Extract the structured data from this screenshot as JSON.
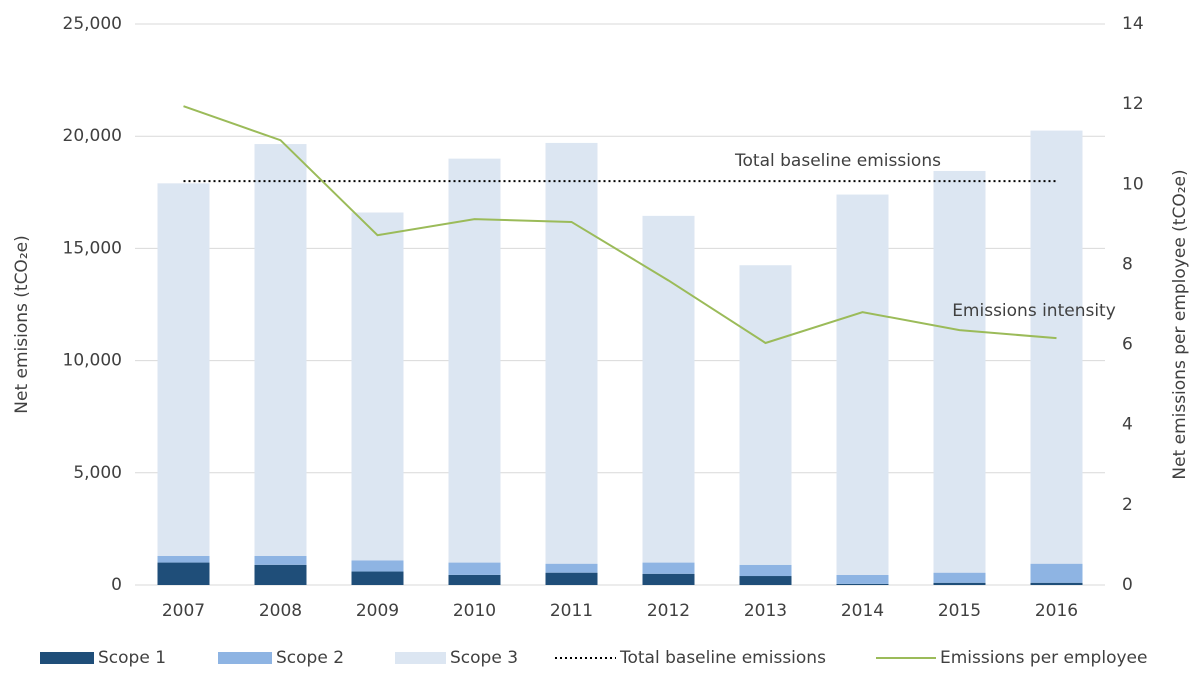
{
  "chart_data": {
    "type": "bar",
    "y_label": "Net emisions (tCO₂e)",
    "y2_label": "Net emissions per employee  (tCO₂e)",
    "categories": [
      "2007",
      "2008",
      "2009",
      "2010",
      "2011",
      "2012",
      "2013",
      "2014",
      "2015",
      "2016"
    ],
    "series": [
      {
        "name": "Scope 1",
        "type": "bar",
        "color": "#1f4e79",
        "values": [
          1000,
          900,
          600,
          450,
          550,
          500,
          400,
          50,
          100,
          100
        ]
      },
      {
        "name": "Scope 2",
        "type": "bar",
        "color": "#8eb4e3",
        "values": [
          300,
          400,
          500,
          550,
          400,
          500,
          500,
          400,
          450,
          850
        ]
      },
      {
        "name": "Scope 3",
        "type": "bar",
        "color": "#dce6f2",
        "values": [
          16600,
          18350,
          15500,
          18000,
          18750,
          15450,
          13350,
          16950,
          17900,
          19300
        ]
      },
      {
        "name": "Total baseline emissions",
        "type": "line",
        "dash": "dotted",
        "color": "#000000",
        "values": [
          18000,
          18000,
          18000,
          18000,
          18000,
          18000,
          18000,
          18000,
          18000,
          18000
        ]
      },
      {
        "name": "Emissions per employee",
        "type": "line",
        "axis": "y2",
        "color": "#9bbb59",
        "values": [
          11.95,
          11.1,
          8.73,
          9.13,
          9.06,
          7.6,
          6.04,
          6.81,
          6.36,
          6.16
        ]
      }
    ],
    "annotations": [
      "Total baseline emissions",
      "Emissions intensity"
    ],
    "ylim": [
      0,
      25000
    ],
    "yticks": [
      0,
      {
        "value": 5000,
        "label": "5,000"
      },
      {
        "value": 10000,
        "label": "10,000"
      },
      {
        "value": 15000,
        "label": "15,000"
      },
      {
        "value": 20000,
        "label": "20,000"
      },
      {
        "value": 25000,
        "label": "25,000"
      }
    ],
    "y2lim": [
      0,
      14
    ],
    "y2ticks": [
      0,
      2,
      4,
      6,
      8,
      10,
      12,
      14
    ],
    "grid": true,
    "legend": "bottom"
  }
}
